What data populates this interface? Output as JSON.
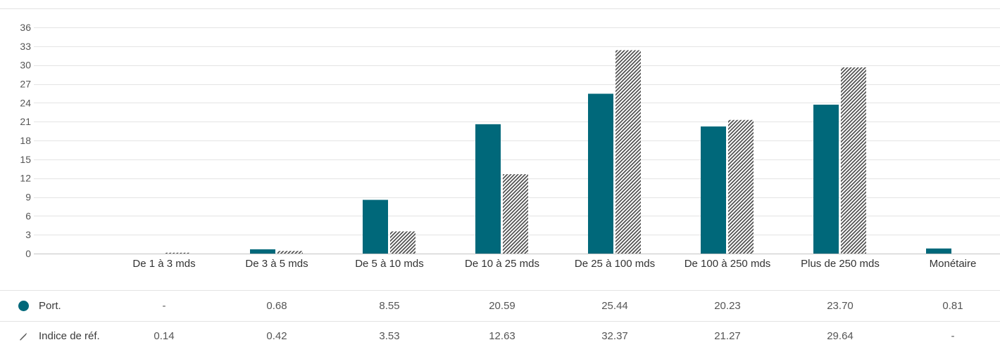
{
  "chart_data": {
    "type": "bar",
    "categories": [
      "De 1 à 3 mds",
      "De 3 à 5 mds",
      "De 5 à 10 mds",
      "De 10 à 25 mds",
      "De 25 à 100 mds",
      "De 100 à 250 mds",
      "Plus de 250 mds",
      "Monétaire"
    ],
    "series": [
      {
        "name": "Port.",
        "values": [
          null,
          0.68,
          8.55,
          20.59,
          25.44,
          20.23,
          23.7,
          0.81
        ],
        "color": "#00687a",
        "fill": "solid"
      },
      {
        "name": "Indice de réf.",
        "values": [
          0.14,
          0.42,
          3.53,
          12.63,
          32.37,
          21.27,
          29.64,
          null
        ],
        "color": "#4d4d4d",
        "fill": "hatched"
      }
    ],
    "yticks": [
      0,
      3,
      6,
      9,
      12,
      15,
      18,
      21,
      24,
      27,
      30,
      33,
      36
    ],
    "ylim": [
      0,
      36
    ],
    "grid": true,
    "legend": "bottom"
  },
  "table": {
    "rows": [
      {
        "icon": "filled-circle-icon",
        "cells": [
          "-",
          "0.68",
          "8.55",
          "20.59",
          "25.44",
          "20.23",
          "23.70",
          "0.81"
        ]
      },
      {
        "icon": "hatched-marker-icon",
        "cells": [
          "0.14",
          "0.42",
          "3.53",
          "12.63",
          "32.37",
          "21.27",
          "29.64",
          "-"
        ]
      }
    ]
  }
}
